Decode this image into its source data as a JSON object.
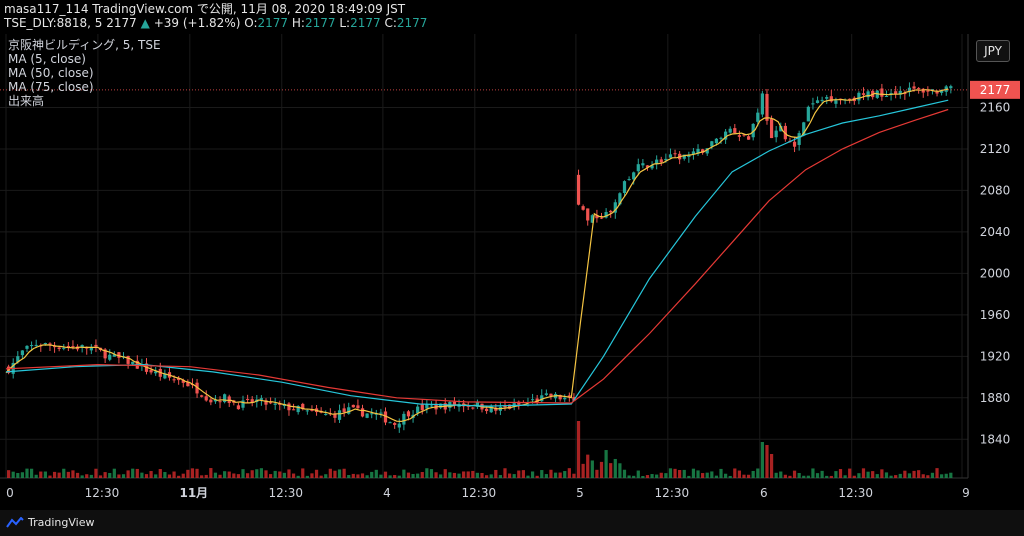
{
  "header": {
    "line1": "masa117_114 TradingView.com で公開, 11月 08, 2020 18:49:09 JST",
    "symbol": "TSE_DLY:8818, 5",
    "last": "2177",
    "change_arrow": "▲",
    "change": "+39 (+1.82%)",
    "o_label": "O:",
    "o_val": "2177",
    "h_label": "H:",
    "h_val": "2177",
    "l_label": "L:",
    "l_val": "2177",
    "c_label": "C:",
    "c_val": "2177"
  },
  "legend": {
    "title": "京阪神ビルディング, 5, TSE",
    "ma5": "MA (5, close)",
    "ma50": "MA (50, close)",
    "ma75": "MA (75, close)",
    "volume": "出来高"
  },
  "currency_button": "JPY",
  "footer": {
    "brand": "TradingView",
    "icon": "tradingview-logo-icon"
  },
  "colors": {
    "up": "#26a69a",
    "down": "#ef5350",
    "ma5": "#f5c542",
    "ma50": "#26c6da",
    "ma75": "#e53935",
    "price_label_bg": "#ef5350"
  },
  "chart_data": {
    "type": "candlestick",
    "title": "京阪神ビルディング, 5, TSE",
    "y_ticks": [
      1840,
      1880,
      1920,
      1960,
      2000,
      2040,
      2080,
      2120,
      2160
    ],
    "ylim": [
      1820,
      2200
    ],
    "current_price": 2177,
    "x_labels": [
      "0",
      "12:30",
      "11月",
      "12:30",
      "4",
      "12:30",
      "5",
      "12:30",
      "6",
      "12:30",
      "9"
    ],
    "x_label_index": [
      0,
      20,
      40,
      60,
      82,
      102,
      124,
      144,
      164,
      184,
      208
    ],
    "n_bars": 208,
    "close_path": [
      [
        0,
        1908
      ],
      [
        3,
        1924
      ],
      [
        6,
        1932
      ],
      [
        10,
        1930
      ],
      [
        14,
        1929
      ],
      [
        18,
        1928
      ],
      [
        22,
        1920
      ],
      [
        26,
        1915
      ],
      [
        30,
        1907
      ],
      [
        34,
        1900
      ],
      [
        38,
        1896
      ],
      [
        41,
        1888
      ],
      [
        44,
        1878
      ],
      [
        47,
        1880
      ],
      [
        50,
        1873
      ],
      [
        54,
        1877
      ],
      [
        58,
        1872
      ],
      [
        62,
        1870
      ],
      [
        66,
        1865
      ],
      [
        70,
        1863
      ],
      [
        74,
        1868
      ],
      [
        78,
        1865
      ],
      [
        81,
        1862
      ],
      [
        84,
        1855
      ],
      [
        87,
        1866
      ],
      [
        90,
        1870
      ],
      [
        94,
        1872
      ],
      [
        98,
        1874
      ],
      [
        102,
        1873
      ],
      [
        106,
        1868
      ],
      [
        110,
        1872
      ],
      [
        114,
        1877
      ],
      [
        118,
        1882
      ],
      [
        122,
        1878
      ],
      [
        123,
        1876
      ],
      [
        124,
        2070
      ],
      [
        126,
        2050
      ],
      [
        128,
        2055
      ],
      [
        131,
        2058
      ],
      [
        134,
        2085
      ],
      [
        137,
        2102
      ],
      [
        141,
        2108
      ],
      [
        145,
        2112
      ],
      [
        149,
        2114
      ],
      [
        153,
        2125
      ],
      [
        157,
        2140
      ],
      [
        161,
        2130
      ],
      [
        164,
        2172
      ],
      [
        166,
        2128
      ],
      [
        168,
        2140
      ],
      [
        171,
        2120
      ],
      [
        174,
        2160
      ],
      [
        178,
        2170
      ],
      [
        182,
        2168
      ],
      [
        186,
        2172
      ],
      [
        190,
        2174
      ],
      [
        194,
        2176
      ],
      [
        198,
        2177
      ],
      [
        202,
        2176
      ],
      [
        205,
        2177
      ]
    ],
    "ma50_path": [
      [
        0,
        1905
      ],
      [
        15,
        1910
      ],
      [
        30,
        1912
      ],
      [
        45,
        1905
      ],
      [
        60,
        1895
      ],
      [
        75,
        1882
      ],
      [
        90,
        1874
      ],
      [
        105,
        1872
      ],
      [
        123,
        1874
      ],
      [
        130,
        1920
      ],
      [
        140,
        1995
      ],
      [
        150,
        2055
      ],
      [
        158,
        2098
      ],
      [
        166,
        2118
      ],
      [
        174,
        2134
      ],
      [
        182,
        2145
      ],
      [
        190,
        2152
      ],
      [
        198,
        2160
      ],
      [
        205,
        2167
      ]
    ],
    "ma75_path": [
      [
        0,
        1908
      ],
      [
        20,
        1912
      ],
      [
        40,
        1910
      ],
      [
        55,
        1902
      ],
      [
        70,
        1890
      ],
      [
        85,
        1880
      ],
      [
        100,
        1876
      ],
      [
        123,
        1875
      ],
      [
        130,
        1898
      ],
      [
        140,
        1942
      ],
      [
        150,
        1990
      ],
      [
        158,
        2030
      ],
      [
        166,
        2070
      ],
      [
        174,
        2100
      ],
      [
        182,
        2120
      ],
      [
        190,
        2136
      ],
      [
        198,
        2148
      ],
      [
        205,
        2158
      ]
    ],
    "volume_spikes": [
      [
        124,
        0.95
      ],
      [
        125,
        0.7
      ],
      [
        126,
        0.55
      ],
      [
        164,
        0.6
      ],
      [
        165,
        0.55
      ],
      [
        166,
        0.4
      ],
      [
        207,
        0.5
      ]
    ]
  }
}
